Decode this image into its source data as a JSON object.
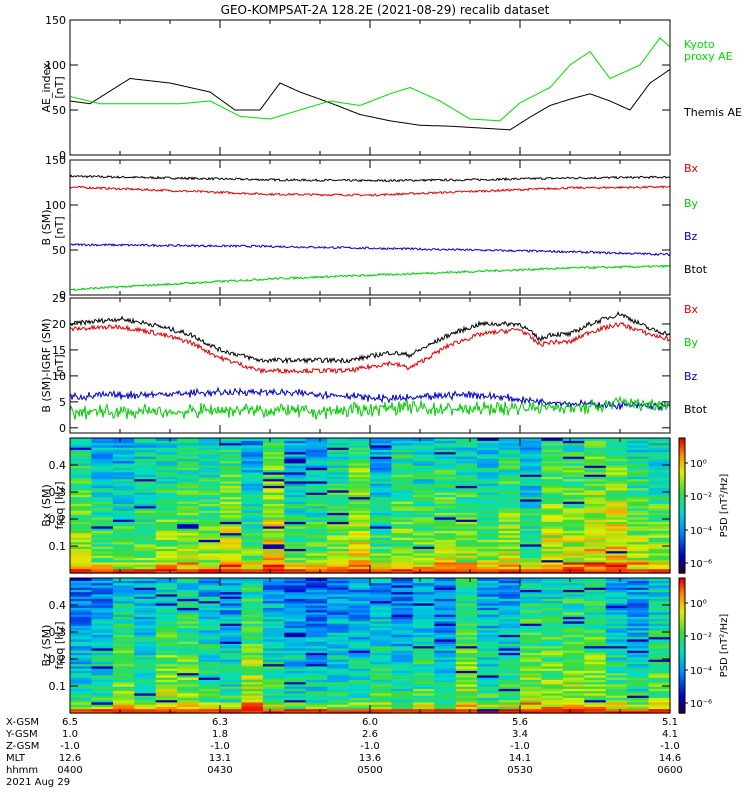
{
  "title": "GEO-KOMPSAT-2A 128.2E (2021-08-29) recalib dataset",
  "chart_data": [
    {
      "type": "line",
      "ylabel_line1": "AE_index",
      "ylabel_line2": "[nT]",
      "ylim": [
        0,
        150
      ],
      "yticks": [
        "0",
        "50",
        "100",
        "150"
      ],
      "xlim": [
        0,
        120
      ],
      "series": [
        {
          "name": "Themis AE",
          "color": "#000000",
          "x": [
            0,
            4,
            12,
            20,
            28,
            33,
            38,
            42,
            46,
            52,
            58,
            64,
            70,
            76,
            82,
            88,
            92,
            96,
            100,
            104,
            108,
            112,
            116,
            120
          ],
          "y": [
            60,
            57,
            85,
            80,
            70,
            50,
            50,
            80,
            70,
            58,
            45,
            38,
            33,
            32,
            30,
            28,
            42,
            55,
            62,
            68,
            60,
            50,
            80,
            95
          ]
        },
        {
          "name": "Kyoto proxy AE",
          "color": "#00dd00",
          "x": [
            0,
            6,
            14,
            22,
            28,
            34,
            40,
            46,
            52,
            58,
            64,
            68,
            74,
            80,
            86,
            90,
            96,
            100,
            104,
            108,
            114,
            118,
            120
          ],
          "y": [
            65,
            57,
            57,
            57,
            60,
            43,
            40,
            50,
            60,
            55,
            68,
            75,
            60,
            40,
            38,
            58,
            75,
            100,
            115,
            85,
            100,
            130,
            120
          ]
        }
      ],
      "legend": [
        "Kyoto",
        "proxy AE",
        "Themis AE"
      ]
    },
    {
      "type": "line",
      "ylabel_line1": "B (SM)",
      "ylabel_line2": "[nT]",
      "ylim": [
        0,
        150
      ],
      "yticks": [
        "0",
        "50",
        "100",
        "150"
      ],
      "xlim": [
        0,
        120
      ],
      "series": [
        {
          "name": "Btot",
          "color": "#000000",
          "x": [
            0,
            20,
            40,
            60,
            80,
            100,
            120
          ],
          "y": [
            132,
            130,
            128,
            127,
            128,
            130,
            131
          ]
        },
        {
          "name": "Bx",
          "color": "#dd0000",
          "x": [
            0,
            20,
            40,
            60,
            80,
            100,
            120
          ],
          "y": [
            120,
            116,
            112,
            111,
            115,
            119,
            120
          ]
        },
        {
          "name": "Bz",
          "color": "#0000cc",
          "x": [
            0,
            20,
            40,
            60,
            80,
            100,
            120
          ],
          "y": [
            56,
            55,
            54,
            52,
            50,
            48,
            45
          ]
        },
        {
          "name": "By",
          "color": "#00cc00",
          "x": [
            0,
            20,
            40,
            60,
            80,
            100,
            120
          ],
          "y": [
            6,
            12,
            18,
            22,
            26,
            30,
            32
          ]
        }
      ],
      "legend": [
        "Bx",
        "By",
        "Bz",
        "Btot"
      ]
    },
    {
      "type": "line",
      "ylabel_line1": "B (SM)-IGRF (SM)",
      "ylabel_line2": "[nT]",
      "ylim": [
        -1,
        25
      ],
      "yticks": [
        "0",
        "5",
        "10",
        "15",
        "20",
        "25"
      ],
      "xlim": [
        0,
        120
      ],
      "series": [
        {
          "name": "Btot",
          "color": "#000000",
          "x": [
            0,
            10,
            16,
            24,
            30,
            38,
            48,
            56,
            64,
            68,
            76,
            82,
            90,
            94,
            96,
            100,
            104,
            110,
            116,
            120
          ],
          "y": [
            20,
            21,
            20,
            18,
            15,
            13,
            13,
            13,
            14.5,
            14,
            18,
            20,
            20,
            17,
            18,
            18,
            20,
            22,
            19,
            18
          ]
        },
        {
          "name": "Bx",
          "color": "#dd0000",
          "x": [
            0,
            10,
            16,
            24,
            30,
            38,
            48,
            56,
            64,
            68,
            76,
            82,
            90,
            94,
            96,
            100,
            104,
            110,
            116,
            120
          ],
          "y": [
            19,
            19.5,
            18.5,
            16.5,
            13.5,
            11,
            11,
            11,
            12.5,
            11.5,
            16,
            18,
            19,
            16,
            16.5,
            16.5,
            18.5,
            20,
            18,
            17
          ]
        },
        {
          "name": "Bz",
          "color": "#0000cc",
          "x": [
            0,
            20,
            35,
            50,
            65,
            80,
            95,
            105,
            120
          ],
          "y": [
            6,
            6.5,
            7,
            6.5,
            5.5,
            6.5,
            5,
            4.5,
            4
          ]
        },
        {
          "name": "By",
          "color": "#00cc00",
          "x": [
            0,
            20,
            35,
            50,
            65,
            80,
            95,
            105,
            110,
            120
          ],
          "y": [
            3,
            3,
            3.5,
            3,
            4,
            3.5,
            4,
            4,
            5,
            4.5
          ]
        }
      ],
      "legend": [
        "Bx",
        "By",
        "Bz",
        "Btot"
      ]
    },
    {
      "type": "heatmap",
      "ylabel_line1": "Bx (SM)",
      "ylabel_line2": "freq [Hz]",
      "ylim": [
        0,
        0.5
      ],
      "yticks": [
        "0.1",
        "0.2",
        "0.3",
        "0.4"
      ],
      "colorbar_label": "PSD [nT²/Hz]",
      "colorbar_ticks": [
        "10⁰",
        "10⁻²",
        "10⁻⁴",
        "10⁻⁶"
      ]
    },
    {
      "type": "heatmap",
      "ylabel_line1": "Bz (SM)",
      "ylabel_line2": "freq [Hz]",
      "ylim": [
        0,
        0.5
      ],
      "yticks": [
        "0.1",
        "0.2",
        "0.3",
        "0.4"
      ],
      "colorbar_label": "PSD [nT²/Hz]",
      "colorbar_ticks": [
        "10⁰",
        "10⁻²",
        "10⁻⁴",
        "10⁻⁶"
      ]
    }
  ],
  "ephemeris": {
    "labels": [
      "X-GSM",
      "Y-GSM",
      "Z-GSM",
      "MLT",
      "hhmm",
      "2021 Aug 29"
    ],
    "columns": [
      {
        "x": 0,
        "values": [
          "6.5",
          "1.0",
          "-1.0",
          "12.6",
          "0400"
        ]
      },
      {
        "x": 30,
        "values": [
          "6.3",
          "1.8",
          "-1.0",
          "13.1",
          "0430"
        ]
      },
      {
        "x": 60,
        "values": [
          "6.0",
          "2.6",
          "-1.0",
          "13.6",
          "0500"
        ]
      },
      {
        "x": 90,
        "values": [
          "5.6",
          "3.4",
          "-1.0",
          "14.1",
          "0530"
        ]
      },
      {
        "x": 120,
        "values": [
          "5.1",
          "4.1",
          "-1.0",
          "14.6",
          "0600"
        ]
      }
    ]
  }
}
